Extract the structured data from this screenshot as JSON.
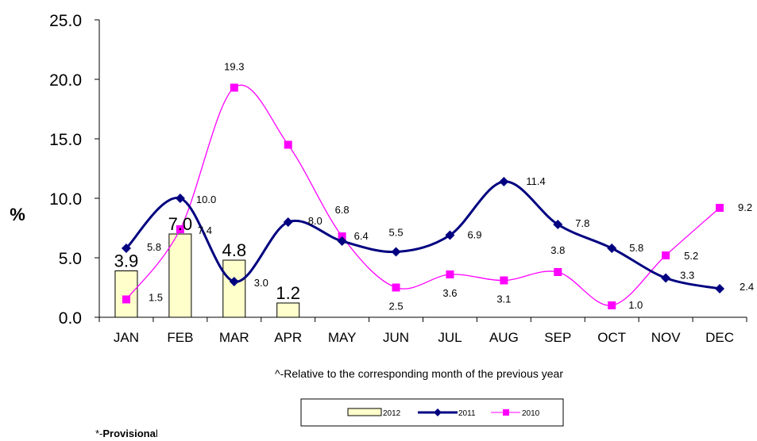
{
  "chart_data": {
    "type": "bar+line",
    "categories": [
      "JAN",
      "FEB",
      "MAR",
      "APR",
      "MAY",
      "JUN",
      "JUL",
      "AUG",
      "SEP",
      "OCT",
      "NOV",
      "DEC"
    ],
    "series": [
      {
        "name": "2012",
        "kind": "bar",
        "color": "#FFFFCC",
        "values": [
          3.9,
          7.0,
          4.8,
          1.2,
          null,
          null,
          null,
          null,
          null,
          null,
          null,
          null
        ],
        "labels": [
          "3.9",
          "7.0",
          "4.8",
          "1.2"
        ]
      },
      {
        "name": "2011",
        "kind": "line",
        "marker": "diamond",
        "color": "#000080",
        "values": [
          5.8,
          10.0,
          3.0,
          8.0,
          6.4,
          5.5,
          6.9,
          11.4,
          7.8,
          5.8,
          3.3,
          2.4
        ],
        "labels": [
          "5.8",
          "10.0",
          "3.0",
          "8.0",
          "6.4",
          "5.5",
          "6.9",
          "11.4",
          "7.8",
          "5.8",
          "3.3",
          "2.4"
        ]
      },
      {
        "name": "2010",
        "kind": "line",
        "marker": "square",
        "color": "#FF00FF",
        "values": [
          1.5,
          7.4,
          19.3,
          14.5,
          6.8,
          2.5,
          3.6,
          3.1,
          3.8,
          1.0,
          5.2,
          9.2
        ],
        "labels": [
          "1.5",
          "7.4",
          "19.3",
          null,
          "6.8",
          "2.5",
          "3.6",
          "3.1",
          "3.8",
          "1.0",
          "5.2",
          "9.2"
        ]
      }
    ],
    "y_ticks": [
      "0.0",
      "5.0",
      "10.0",
      "15.0",
      "20.0",
      "25.0"
    ],
    "ylim": [
      0,
      25
    ],
    "ylabel": "%",
    "xlabel": "",
    "title": "",
    "grid": false,
    "legend_position": "bottom-center",
    "annotation": "^-Relative to the corresponding month of the previous year",
    "footnote_prefix": "*-",
    "footnote_bold": "Provisiona",
    "footnote_tail": "l"
  }
}
